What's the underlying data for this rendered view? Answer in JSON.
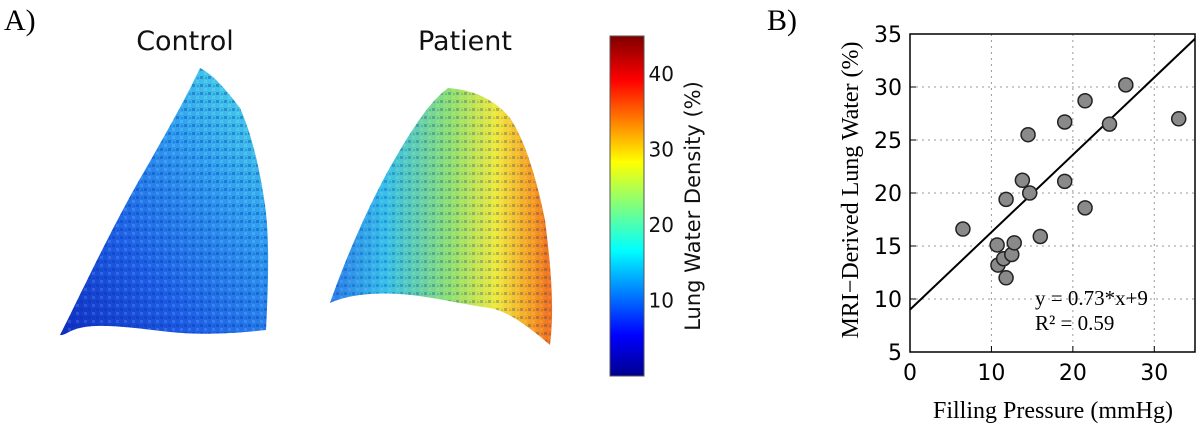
{
  "panel_a": {
    "label": "A)",
    "maps": [
      {
        "title": "Control"
      },
      {
        "title": "Patient"
      }
    ],
    "colorbar": {
      "label": "Lung Water Density (%)",
      "ticks": [
        10,
        20,
        30,
        40
      ],
      "range": [
        0,
        45
      ],
      "colormap": "jet"
    }
  },
  "panel_b": {
    "label": "B)"
  },
  "chart_data": [
    {
      "type": "scatter",
      "xlabel": "Filling Pressure (mmHg)",
      "ylabel": "MRI−Derived Lung Water (%)",
      "xlim": [
        0,
        35
      ],
      "ylim": [
        5,
        35
      ],
      "xticks": [
        0,
        10,
        20,
        30
      ],
      "yticks": [
        5,
        10,
        15,
        20,
        25,
        30,
        35
      ],
      "grid": true,
      "points": [
        {
          "x": 6.5,
          "y": 16.6
        },
        {
          "x": 10.7,
          "y": 15.1
        },
        {
          "x": 10.8,
          "y": 13.2
        },
        {
          "x": 11.5,
          "y": 13.8
        },
        {
          "x": 11.8,
          "y": 12.0
        },
        {
          "x": 11.8,
          "y": 19.4
        },
        {
          "x": 12.5,
          "y": 14.2
        },
        {
          "x": 12.8,
          "y": 15.3
        },
        {
          "x": 13.8,
          "y": 21.2
        },
        {
          "x": 14.5,
          "y": 25.5
        },
        {
          "x": 14.7,
          "y": 20.0
        },
        {
          "x": 16.0,
          "y": 15.9
        },
        {
          "x": 19.0,
          "y": 26.7
        },
        {
          "x": 19.0,
          "y": 21.1
        },
        {
          "x": 21.5,
          "y": 18.6
        },
        {
          "x": 21.5,
          "y": 28.7
        },
        {
          "x": 24.5,
          "y": 26.5
        },
        {
          "x": 26.5,
          "y": 30.2
        },
        {
          "x": 33.0,
          "y": 27.0
        }
      ],
      "fit": {
        "slope": 0.73,
        "intercept": 9
      },
      "annotations": [
        "y = 0.73*x+9",
        "R² = 0.59"
      ],
      "marker_color": "#8a8a8a"
    }
  ]
}
